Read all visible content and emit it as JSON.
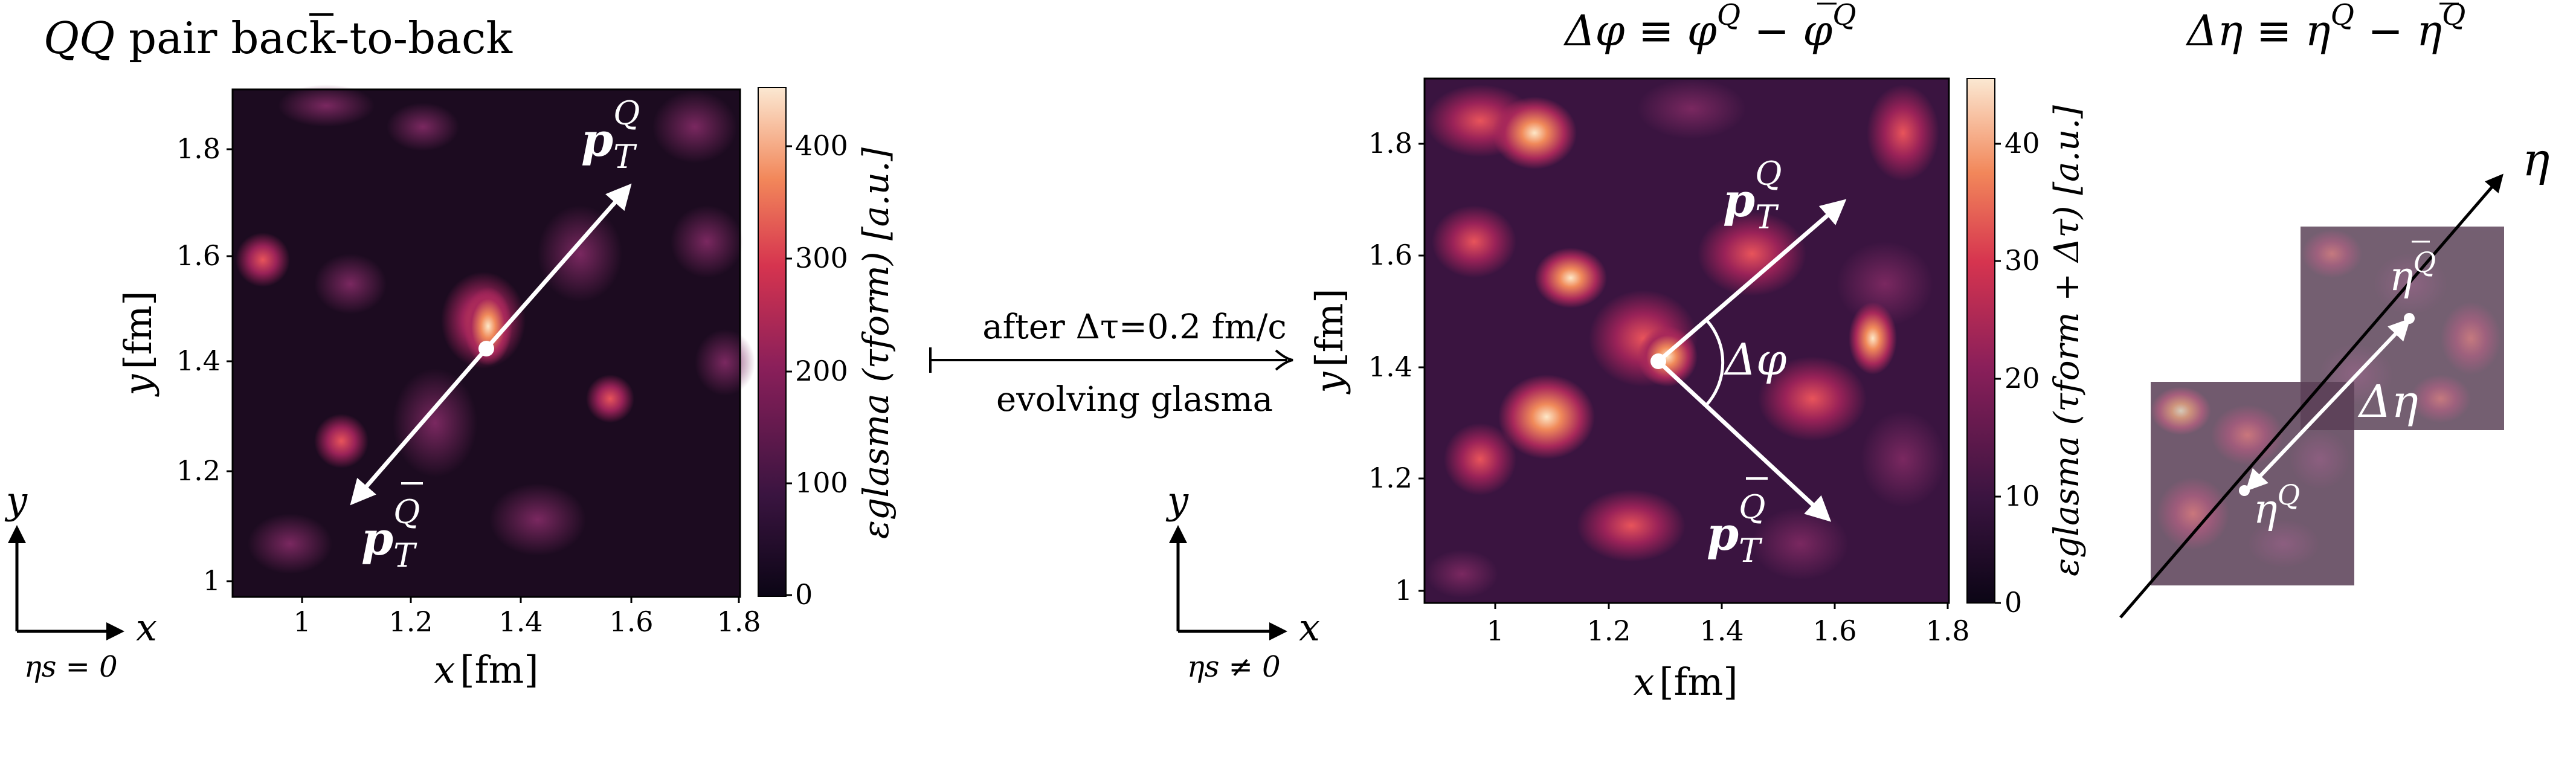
{
  "left_panel": {
    "title_prefix": "QQ",
    "title_suffix": " pair back-to-back",
    "xlabel_var": "x",
    "xlabel_unit": "[fm]",
    "ylabel_var": "y",
    "ylabel_unit": "[fm]",
    "x_ticks": [
      "1",
      "1.2",
      "1.4",
      "1.6",
      "1.8"
    ],
    "y_ticks": [
      "1",
      "1.2",
      "1.4",
      "1.6",
      "1.8"
    ],
    "colorbar_ticks": [
      "0",
      "100",
      "200",
      "300",
      "400"
    ],
    "colorbar_label": "εglasma (τform) [a.u.]",
    "pt_q_base": "p",
    "pt_sub": "T",
    "pt_sup_q": "Q",
    "pt_sup_qbar": "Q"
  },
  "arrow_middle": {
    "top_text": "after Δτ=0.2 fm/c",
    "bottom_text": "evolving glasma"
  },
  "axes_left": {
    "y": "y",
    "x": "x",
    "caption": "ηs = 0"
  },
  "axes_middle": {
    "y": "y",
    "x": "x",
    "caption": "ηs ≠ 0"
  },
  "right_panel": {
    "title": "Δφ ≡ φQ − φQ",
    "title_phi": "Δφ ≡ φ",
    "title_minus": " − φ",
    "sup_q": "Q",
    "sup_qbar": "Q",
    "xlabel_var": "x",
    "xlabel_unit": "[fm]",
    "ylabel_var": "y",
    "ylabel_unit": "[fm]",
    "x_ticks": [
      "1",
      "1.2",
      "1.4",
      "1.6",
      "1.8"
    ],
    "y_ticks": [
      "1",
      "1.2",
      "1.4",
      "1.6",
      "1.8"
    ],
    "colorbar_ticks": [
      "0",
      "10",
      "20",
      "30",
      "40"
    ],
    "colorbar_label": "εglasma (τform + Δτ) [a.u.]",
    "angle_label": "Δφ"
  },
  "eta_panel": {
    "title_main": "Δη ≡ η",
    "title_minus": " − η",
    "sup_q": "Q",
    "sup_qbar": "Q",
    "axis_label": "η",
    "delta_eta": "Δη",
    "eta_q": "η",
    "eta_qbar": "η"
  },
  "colors": {
    "map_dark": "#1a0a1f",
    "map_mid": "#7a1f5c",
    "map_hot": "#f08a5a",
    "map_peak": "#fde8c8",
    "arrow": "#ffffff"
  }
}
